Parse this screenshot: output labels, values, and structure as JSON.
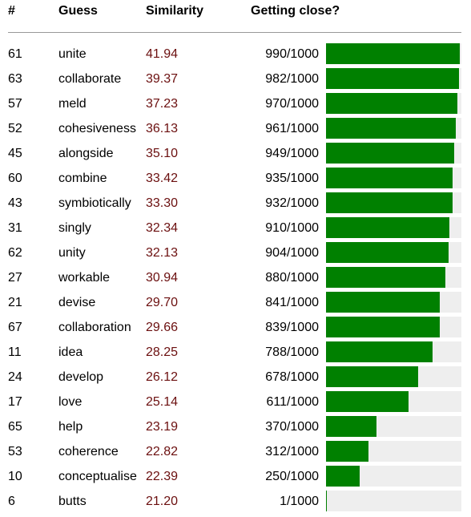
{
  "header": {
    "num": "#",
    "guess": "Guess",
    "similarity": "Similarity",
    "close": "Getting close?"
  },
  "colors": {
    "bar_fill": "#008000",
    "bar_track": "#eeeeee",
    "similarity_text": "#6b0f0f"
  },
  "rows": [
    {
      "num": "61",
      "word": "unite",
      "similarity": "41.94",
      "close": "990/1000",
      "progress": 0.99
    },
    {
      "num": "63",
      "word": "collaborate",
      "similarity": "39.37",
      "close": "982/1000",
      "progress": 0.982
    },
    {
      "num": "57",
      "word": "meld",
      "similarity": "37.23",
      "close": "970/1000",
      "progress": 0.97
    },
    {
      "num": "52",
      "word": "cohesiveness",
      "similarity": "36.13",
      "close": "961/1000",
      "progress": 0.961
    },
    {
      "num": "45",
      "word": "alongside",
      "similarity": "35.10",
      "close": "949/1000",
      "progress": 0.949
    },
    {
      "num": "60",
      "word": "combine",
      "similarity": "33.42",
      "close": "935/1000",
      "progress": 0.935
    },
    {
      "num": "43",
      "word": "symbiotically",
      "similarity": "33.30",
      "close": "932/1000",
      "progress": 0.932
    },
    {
      "num": "31",
      "word": "singly",
      "similarity": "32.34",
      "close": "910/1000",
      "progress": 0.91
    },
    {
      "num": "62",
      "word": "unity",
      "similarity": "32.13",
      "close": "904/1000",
      "progress": 0.904
    },
    {
      "num": "27",
      "word": "workable",
      "similarity": "30.94",
      "close": "880/1000",
      "progress": 0.88
    },
    {
      "num": "21",
      "word": "devise",
      "similarity": "29.70",
      "close": "841/1000",
      "progress": 0.841
    },
    {
      "num": "67",
      "word": "collaboration",
      "similarity": "29.66",
      "close": "839/1000",
      "progress": 0.839
    },
    {
      "num": "11",
      "word": "idea",
      "similarity": "28.25",
      "close": "788/1000",
      "progress": 0.788
    },
    {
      "num": "24",
      "word": "develop",
      "similarity": "26.12",
      "close": "678/1000",
      "progress": 0.678
    },
    {
      "num": "17",
      "word": "love",
      "similarity": "25.14",
      "close": "611/1000",
      "progress": 0.611
    },
    {
      "num": "65",
      "word": "help",
      "similarity": "23.19",
      "close": "370/1000",
      "progress": 0.37
    },
    {
      "num": "53",
      "word": "coherence",
      "similarity": "22.82",
      "close": "312/1000",
      "progress": 0.312
    },
    {
      "num": "10",
      "word": "conceptualise",
      "similarity": "22.39",
      "close": "250/1000",
      "progress": 0.25
    },
    {
      "num": "6",
      "word": "butts",
      "similarity": "21.20",
      "close": "1/1000",
      "progress": 0.001
    }
  ]
}
